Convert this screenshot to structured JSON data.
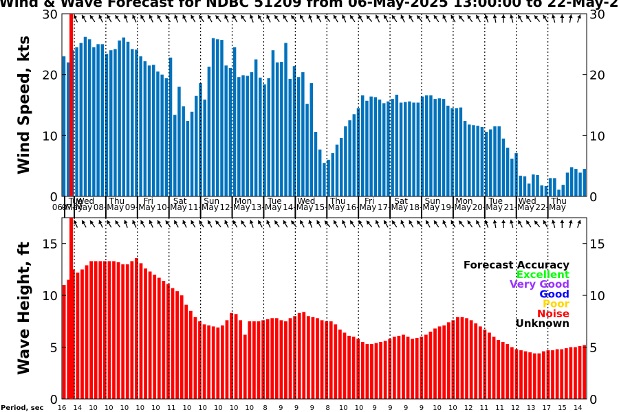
{
  "chart_data": [
    {
      "type": "bar",
      "title": "Wind & Wave Forecast for NDBC 51209 from 06-May-2025 13:00:00 to 22-May-2025",
      "ylabel": "Wind Speed, kts",
      "ylim": [
        0,
        30
      ],
      "yticks": [
        0,
        10,
        20,
        30
      ],
      "bar_color": "#0072bd",
      "series": [
        {
          "values": [
            23.0,
            22.0,
            24.0,
            24.5,
            25.2,
            26.2,
            25.8,
            24.5,
            25.0,
            25.0,
            23.4,
            24.0,
            24.2,
            25.6,
            26.1,
            25.4,
            24.2,
            24.1,
            23.0,
            22.2,
            21.5,
            21.6,
            20.5,
            20.0,
            19.4,
            22.8,
            13.4,
            18.0,
            14.8,
            12.4,
            13.9,
            16.5,
            18.6,
            15.9,
            21.3,
            26.0,
            25.8,
            25.7,
            21.5,
            21.1,
            24.5,
            19.6,
            19.9,
            19.8,
            20.4,
            22.5,
            19.5,
            18.4,
            19.4,
            24.0,
            22.0,
            22.1,
            25.2,
            19.3,
            21.4,
            19.6,
            20.4,
            15.2,
            18.6,
            10.6,
            7.7,
            5.5,
            6.0,
            7.1,
            8.5,
            9.6,
            11.5,
            12.5,
            13.5,
            14.5,
            16.6,
            15.7,
            16.4,
            16.3,
            15.9,
            15.3,
            15.6,
            16.0,
            16.7,
            15.4,
            15.5,
            15.6,
            15.4,
            15.4,
            16.4,
            16.6,
            16.6,
            16.0,
            16.1,
            16.0,
            14.9,
            14.5,
            14.5,
            14.6,
            12.4,
            11.8,
            11.7,
            11.6,
            11.4,
            10.6,
            11.0,
            11.5,
            11.5,
            9.5,
            8.0,
            6.2,
            7.1,
            3.4,
            3.3,
            2.1,
            3.6,
            3.5,
            1.8,
            1.7,
            3.0,
            3.0,
            1.1,
            1.9,
            3.9,
            4.8,
            4.5,
            3.9,
            4.5
          ]
        }
      ],
      "day_labels": [
        {
          "weekday": "Tue",
          "date": "06-May"
        },
        {
          "weekday": "Wed",
          "date": "07-May"
        },
        {
          "weekday": "Thu",
          "date": "08-May"
        },
        {
          "weekday": "Fri",
          "date": "09-May"
        },
        {
          "weekday": "Sat",
          "date": "10-May"
        },
        {
          "weekday": "Sun",
          "date": "11-May"
        },
        {
          "weekday": "Mon",
          "date": "12-May"
        },
        {
          "weekday": "Tue",
          "date": "13-May"
        },
        {
          "weekday": "Wed",
          "date": "14-May"
        },
        {
          "weekday": "Thu",
          "date": "15-May"
        },
        {
          "weekday": "Fri",
          "date": "16-May"
        },
        {
          "weekday": "Sat",
          "date": "17-May"
        },
        {
          "weekday": "Sun",
          "date": "18-May"
        },
        {
          "weekday": "Mon",
          "date": "19-May"
        },
        {
          "weekday": "Tue",
          "date": "20-May"
        },
        {
          "weekday": "Wed",
          "date": "21-May"
        },
        {
          "weekday": "Thu",
          "date": "22-May"
        }
      ],
      "wind_directions_deg": [
        155,
        150,
        145,
        155,
        150,
        145,
        160,
        155,
        150,
        155,
        150,
        145,
        160,
        155,
        150,
        145,
        150,
        140,
        155,
        150,
        145,
        160,
        150,
        155,
        145,
        150,
        140,
        150,
        160,
        150,
        140,
        150,
        155,
        145,
        150,
        140,
        155,
        150,
        145,
        155,
        150,
        140,
        150,
        145,
        155,
        150,
        140,
        145,
        150,
        160,
        170,
        180,
        165,
        150,
        145,
        140,
        150,
        165,
        180,
        190,
        200
      ],
      "wind_direction_symbol": "arrow"
    },
    {
      "type": "bar",
      "ylabel": "Wave Height, ft",
      "ylim": [
        0,
        17.5
      ],
      "yticks": [
        0,
        5,
        10,
        15
      ],
      "bar_color": "#ff0000",
      "series": [
        {
          "values": [
            11.0,
            11.5,
            12.5,
            12.2,
            12.5,
            12.9,
            13.3,
            13.3,
            13.3,
            13.3,
            13.3,
            13.3,
            13.2,
            13.0,
            13.0,
            13.3,
            13.6,
            13.1,
            12.6,
            12.3,
            12.0,
            11.7,
            11.4,
            11.1,
            10.7,
            10.4,
            10.0,
            9.1,
            8.5,
            7.9,
            7.5,
            7.2,
            7.1,
            7.0,
            6.9,
            7.1,
            7.6,
            8.3,
            8.2,
            7.6,
            6.2,
            7.5,
            7.5,
            7.5,
            7.6,
            7.7,
            7.8,
            7.8,
            7.6,
            7.5,
            7.8,
            8.0,
            8.3,
            8.4,
            8.0,
            7.9,
            7.8,
            7.6,
            7.5,
            7.5,
            7.2,
            6.7,
            6.4,
            6.1,
            6.0,
            5.8,
            5.5,
            5.3,
            5.3,
            5.4,
            5.5,
            5.6,
            5.8,
            6.0,
            6.1,
            6.2,
            6.0,
            5.8,
            5.9,
            6.0,
            6.2,
            6.5,
            6.8,
            7.0,
            7.1,
            7.4,
            7.6,
            7.9,
            7.9,
            7.8,
            7.6,
            7.3,
            7.0,
            6.7,
            6.4,
            6.0,
            5.7,
            5.5,
            5.3,
            5.0,
            4.8,
            4.7,
            4.6,
            4.5,
            4.4,
            4.4,
            4.6,
            4.7,
            4.7,
            4.8,
            4.8,
            4.9,
            5.0,
            5.0,
            5.1,
            5.2
          ]
        }
      ],
      "period_label": "Period, sec",
      "period_values": [
        16,
        14,
        10,
        10,
        10,
        10,
        10,
        11,
        10,
        10,
        10,
        10,
        10,
        8,
        9,
        9,
        9,
        8,
        10,
        10,
        9,
        9,
        9,
        9,
        10,
        10,
        12,
        11,
        11,
        12,
        13,
        17,
        15,
        14
      ],
      "wave_directions_deg": [
        155,
        150,
        145,
        155,
        150,
        145,
        160,
        155,
        150,
        155,
        150,
        145,
        150,
        155,
        150,
        145,
        150,
        140,
        155,
        150,
        145,
        160,
        150,
        155,
        145,
        150,
        140,
        150,
        160,
        150,
        140,
        150,
        155,
        145,
        150,
        140,
        155,
        150,
        145,
        155,
        150,
        140,
        150,
        145,
        155,
        150,
        140,
        145,
        150,
        160,
        170,
        180,
        165,
        150,
        145,
        140,
        150,
        165,
        180,
        190,
        200
      ],
      "legend": {
        "title": "Forecast Accuracy",
        "items": [
          {
            "label": "Excellent",
            "color": "#00ff00"
          },
          {
            "label": "Very Good",
            "color": "#9933ff"
          },
          {
            "label": "Good",
            "color": "#0000ff"
          },
          {
            "label": "Poor",
            "color": "#ffd700"
          },
          {
            "label": "Noise",
            "color": "#ff0000"
          },
          {
            "label": "Unknown",
            "color": "#000000"
          }
        ]
      }
    }
  ]
}
